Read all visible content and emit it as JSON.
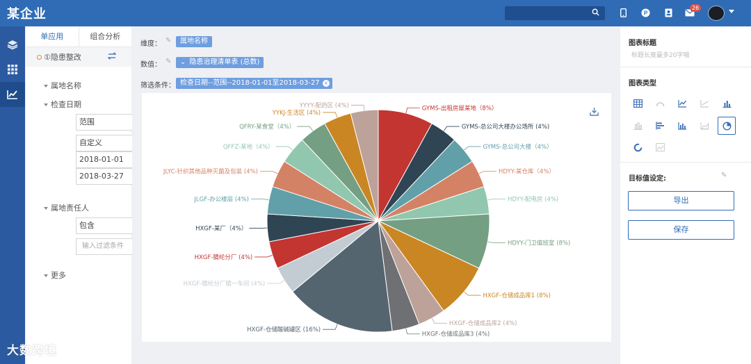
{
  "app": {
    "title": "某企业"
  },
  "topbar": {
    "notification_count": "26"
  },
  "config": {
    "tabs": [
      "单应用",
      "组合分析"
    ],
    "current_item": "①隐患整改",
    "fields": {
      "area_name": "属地名称",
      "check_date": "检查日期",
      "range_select": "范围",
      "custom_select": "自定义",
      "date_start": "2018-01-01",
      "date_end": "2018-03-27",
      "owner": "属地责任人",
      "contains_select": "包含",
      "filter_placeholder": "输入过滤条件",
      "more": "更多"
    }
  },
  "main": {
    "dimension_label": "维度：",
    "dimension_chip": "属地名称",
    "value_label": "数值：",
    "value_chip": "隐患治理清单表 (总数)",
    "filter_label": "筛选条件：",
    "filter_chip": "检查日期--范围--2018-01-01至2018-03-27"
  },
  "chart_data": {
    "type": "pie",
    "slices": [
      {
        "label": "GYMS-出租房屋某地（8%）",
        "value": 8,
        "color": "#c23531"
      },
      {
        "label": "GYMS-总公司大楼办公场所 (4%)",
        "value": 4,
        "color": "#2f4554"
      },
      {
        "label": "GYMS-总公司大楼（4%）",
        "value": 4,
        "color": "#61a0a8"
      },
      {
        "label": "HDYY-某仓库（4%）",
        "value": 4,
        "color": "#d48265"
      },
      {
        "label": "HDYY-配电房 (4%)",
        "value": 4,
        "color": "#91c7ae"
      },
      {
        "label": "HDYY-门卫值班室 (8%)",
        "value": 8,
        "color": "#749f83"
      },
      {
        "label": "HXGF-仓储成品库1 (8%)",
        "value": 8,
        "color": "#ca8622"
      },
      {
        "label": "HXGF-仓储成品库2 (4%)",
        "value": 4,
        "color": "#bda29a"
      },
      {
        "label": "HXGF-仓储成品库3 (4%)",
        "value": 4,
        "color": "#6e7074"
      },
      {
        "label": "HXGF-仓储酸碱罐区 (16%)",
        "value": 16,
        "color": "#546570"
      },
      {
        "label": "HXGF-腈纶分厂腈一车间 (4%)",
        "value": 4,
        "color": "#c4ccd3"
      },
      {
        "label": "HXGF-腈纶分厂 (4%)",
        "value": 4,
        "color": "#c23531"
      },
      {
        "label": "HXGF-某厂（4%）",
        "value": 4,
        "color": "#2f4554"
      },
      {
        "label": "JLGF-办公楼层 (4%)",
        "value": 4,
        "color": "#61a0a8"
      },
      {
        "label": "JLYC-针织其他品种灭菌及包装 (4%)",
        "value": 4,
        "color": "#d48265"
      },
      {
        "label": "QFFZ-某地（4%）",
        "value": 4,
        "color": "#91c7ae"
      },
      {
        "label": "QFRY-某食堂（4%）",
        "value": 4,
        "color": "#749f83"
      },
      {
        "label": "YYKJ-生活区 (4%)",
        "value": 4,
        "color": "#ca8622"
      },
      {
        "label": "YYYY-配药区 (4%)",
        "value": 4,
        "color": "#bda29a"
      }
    ]
  },
  "rpanel": {
    "chart_title_label": "图表标题",
    "chart_title_placeholder": "标题长度最多20字哦",
    "chart_type_label": "图表类型",
    "target_label": "目标值设定:",
    "export_button": "导出",
    "save_button": "保存"
  },
  "watermark": {
    "text": "大数跨境"
  }
}
